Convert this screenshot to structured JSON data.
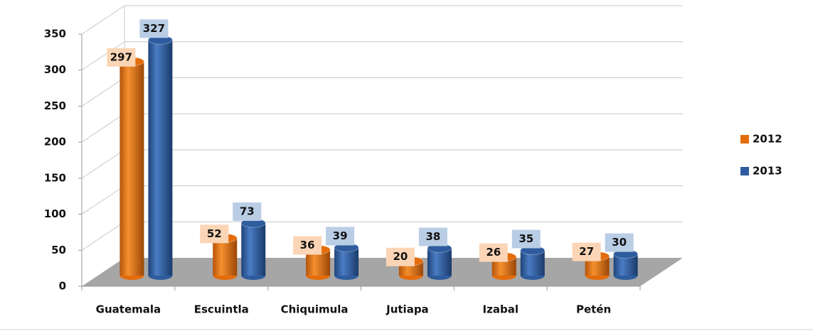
{
  "chart_data": {
    "type": "bar",
    "categories": [
      "Guatemala",
      "Escuintla",
      "Chiquimula",
      "Jutiapa",
      "Izabal",
      "Petén"
    ],
    "series": [
      {
        "name": "2012",
        "color": "#e46c0a",
        "label_color": "#fbd5b5",
        "values": [
          297,
          52,
          36,
          20,
          26,
          27
        ]
      },
      {
        "name": "2013",
        "color": "#2e5c9e",
        "label_color": "#b9cde5",
        "values": [
          327,
          73,
          39,
          38,
          35,
          30
        ]
      }
    ],
    "ylim": [
      0,
      350
    ],
    "yticks": [
      0,
      50,
      100,
      150,
      200,
      250,
      300,
      350
    ],
    "grid": true,
    "legend": "right"
  }
}
